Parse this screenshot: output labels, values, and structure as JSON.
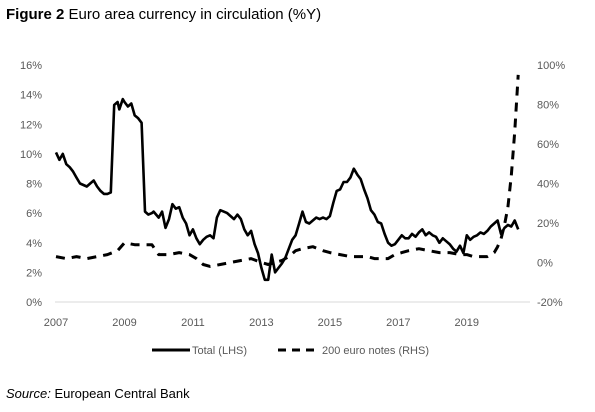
{
  "figure": {
    "label": "Figure 2",
    "title": "Euro area currency in circulation (%Y)",
    "source_label": "Source:",
    "source_text": "European Central Bank"
  },
  "chart_data": {
    "type": "line",
    "title": "Euro area currency in circulation (%Y)",
    "xlabel": "",
    "ylabel": "",
    "xlim": [
      2007,
      2020.7
    ],
    "ylim": [
      0,
      16
    ],
    "ylim_right": [
      -20,
      100
    ],
    "x_ticks": [
      2007,
      2009,
      2011,
      2013,
      2015,
      2017,
      2019
    ],
    "x_tick_labels": [
      "2007",
      "2009",
      "2011",
      "2013",
      "2015",
      "2017",
      "2019"
    ],
    "y_ticks": [
      0,
      2,
      4,
      6,
      8,
      10,
      12,
      14,
      16
    ],
    "y_tick_labels": [
      "0%",
      "2%",
      "4%",
      "6%",
      "8%",
      "10%",
      "12%",
      "14%",
      "16%"
    ],
    "y2_ticks": [
      -20,
      0,
      20,
      40,
      60,
      80,
      100
    ],
    "y2_tick_labels": [
      "-20%",
      "0%",
      "20%",
      "40%",
      "60%",
      "80%",
      "100%"
    ],
    "grid": false,
    "legend_position": "bottom",
    "series": [
      {
        "name": "Total (LHS)",
        "axis": "left",
        "style": "solid",
        "color": "#000000",
        "x": [
          2007.0,
          2007.1,
          2007.2,
          2007.3,
          2007.4,
          2007.5,
          2007.6,
          2007.7,
          2007.8,
          2007.9,
          2008.0,
          2008.1,
          2008.2,
          2008.3,
          2008.4,
          2008.5,
          2008.6,
          2008.7,
          2008.8,
          2008.85,
          2008.95,
          2009.0,
          2009.1,
          2009.2,
          2009.3,
          2009.4,
          2009.5,
          2009.6,
          2009.7,
          2009.8,
          2009.85,
          2010.0,
          2010.1,
          2010.2,
          2010.3,
          2010.4,
          2010.5,
          2010.6,
          2010.7,
          2010.8,
          2010.9,
          2011.0,
          2011.1,
          2011.2,
          2011.3,
          2011.4,
          2011.5,
          2011.6,
          2011.7,
          2011.8,
          2011.9,
          2012.0,
          2012.1,
          2012.2,
          2012.3,
          2012.4,
          2012.5,
          2012.6,
          2012.7,
          2012.8,
          2012.9,
          2013.0,
          2013.1,
          2013.2,
          2013.3,
          2013.4,
          2013.5,
          2013.6,
          2013.7,
          2013.8,
          2013.9,
          2014.0,
          2014.1,
          2014.2,
          2014.3,
          2014.4,
          2014.5,
          2014.6,
          2014.7,
          2014.8,
          2014.9,
          2015.0,
          2015.1,
          2015.2,
          2015.3,
          2015.4,
          2015.5,
          2015.6,
          2015.7,
          2015.8,
          2015.9,
          2016.0,
          2016.1,
          2016.2,
          2016.3,
          2016.4,
          2016.5,
          2016.6,
          2016.7,
          2016.8,
          2016.9,
          2017.0,
          2017.1,
          2017.2,
          2017.3,
          2017.4,
          2017.5,
          2017.6,
          2017.7,
          2017.8,
          2017.9,
          2018.0,
          2018.1,
          2018.2,
          2018.3,
          2018.4,
          2018.5,
          2018.6,
          2018.7,
          2018.8,
          2018.9,
          2019.0,
          2019.1,
          2019.2,
          2019.3,
          2019.4,
          2019.5,
          2019.6,
          2019.7,
          2019.8,
          2019.9,
          2020.0,
          2020.1,
          2020.2,
          2020.3,
          2020.4,
          2020.5
        ],
        "y": [
          10.1,
          9.6,
          10.0,
          9.3,
          9.1,
          8.8,
          8.4,
          8.0,
          7.9,
          7.8,
          8.0,
          8.2,
          7.8,
          7.5,
          7.3,
          7.3,
          7.4,
          13.3,
          13.5,
          13.0,
          13.7,
          13.5,
          13.2,
          13.4,
          12.6,
          12.4,
          12.1,
          6.1,
          5.9,
          6.0,
          6.1,
          5.7,
          6.1,
          5.0,
          5.6,
          6.6,
          6.3,
          6.4,
          5.7,
          5.3,
          4.5,
          4.9,
          4.3,
          3.9,
          4.2,
          4.4,
          4.5,
          4.3,
          5.7,
          6.2,
          6.1,
          6.0,
          5.8,
          5.6,
          5.9,
          5.6,
          4.9,
          4.5,
          4.8,
          3.9,
          3.3,
          2.3,
          1.5,
          1.5,
          3.2,
          2.0,
          2.3,
          2.6,
          3.0,
          3.6,
          4.2,
          4.5,
          5.3,
          6.1,
          5.4,
          5.3,
          5.5,
          5.7,
          5.6,
          5.7,
          5.6,
          5.8,
          6.7,
          7.5,
          7.6,
          8.1,
          8.1,
          8.4,
          9.0,
          8.6,
          8.3,
          7.6,
          7.0,
          6.2,
          5.9,
          5.4,
          5.3,
          4.6,
          4.0,
          3.8,
          3.9,
          4.2,
          4.5,
          4.3,
          4.3,
          4.6,
          4.4,
          4.7,
          4.9,
          4.5,
          4.7,
          4.5,
          4.4,
          4.0,
          4.3,
          4.1,
          3.9,
          3.6,
          3.4,
          3.8,
          3.3,
          4.5,
          4.2,
          4.4,
          4.5,
          4.7,
          4.6,
          4.8,
          5.1,
          5.3,
          5.5,
          4.6,
          5.0,
          5.2,
          5.1,
          5.5,
          4.9
        ]
      },
      {
        "name": "200 euro notes (RHS)",
        "axis": "right",
        "style": "dashed",
        "color": "#000000",
        "x": [
          2007.0,
          2007.3,
          2007.6,
          2007.9,
          2008.2,
          2008.5,
          2008.8,
          2009.0,
          2009.3,
          2009.6,
          2009.8,
          2010.0,
          2010.3,
          2010.6,
          2010.9,
          2011.1,
          2011.3,
          2011.5,
          2011.8,
          2012.1,
          2012.4,
          2012.7,
          2013.0,
          2013.2,
          2013.4,
          2013.6,
          2013.8,
          2014.0,
          2014.2,
          2014.5,
          2014.8,
          2015.0,
          2015.3,
          2015.6,
          2015.9,
          2016.1,
          2016.3,
          2016.5,
          2016.7,
          2016.9,
          2017.1,
          2017.3,
          2017.6,
          2017.9,
          2018.2,
          2018.5,
          2018.8,
          2019.0,
          2019.2,
          2019.4,
          2019.6,
          2019.8,
          2019.9,
          2020.0,
          2020.1,
          2020.2,
          2020.3,
          2020.4,
          2020.5
        ],
        "y": [
          3,
          2,
          3,
          2,
          3,
          4,
          6,
          10,
          9,
          9,
          9,
          4,
          4,
          5,
          4,
          2,
          -1,
          -2,
          -1,
          0,
          1,
          2,
          0,
          -1,
          0,
          1,
          3,
          6,
          7,
          8,
          6,
          5,
          4,
          3,
          3,
          3,
          2,
          2,
          2,
          4,
          5,
          6,
          7,
          6,
          5,
          5,
          4,
          4,
          3,
          3,
          3,
          5,
          8,
          12,
          19,
          28,
          44,
          66,
          95
        ]
      }
    ]
  }
}
